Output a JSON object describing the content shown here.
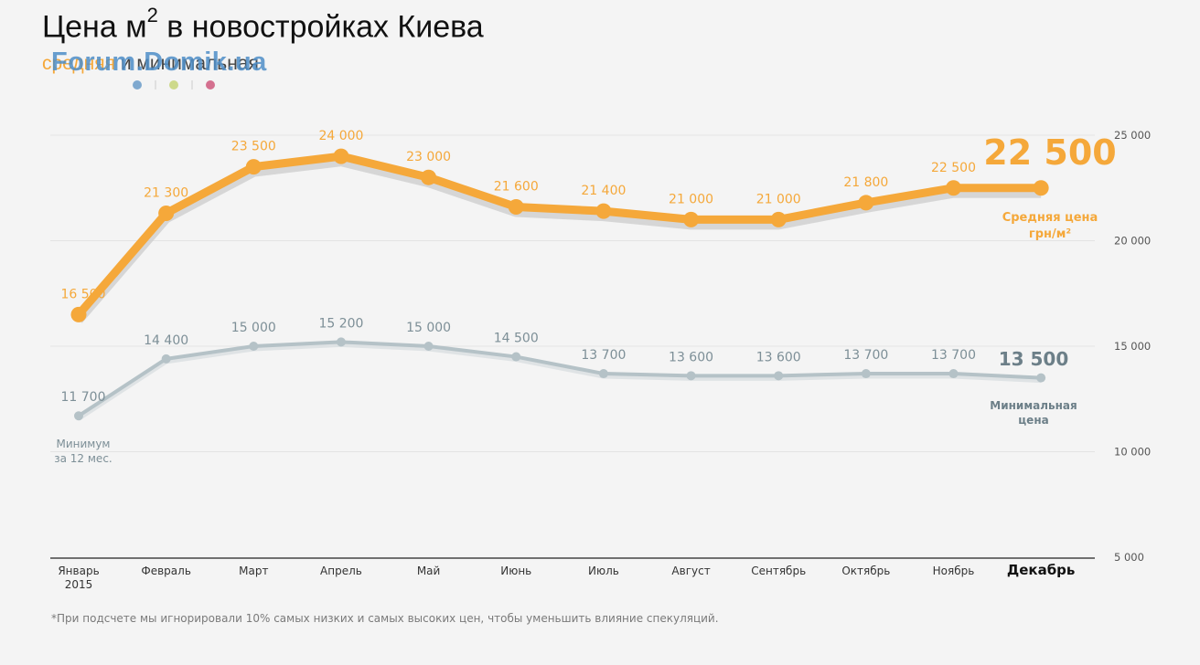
{
  "title": {
    "main": "Цена м",
    "sup": "2",
    "rest": " в новостройках Киева"
  },
  "subtitle": {
    "avg_word": "средняя",
    "rest": " и минимальная"
  },
  "watermark": {
    "text": "Forum.Domik.ua",
    "dot_colors": [
      "#7fa9cf",
      "#cdd98a",
      "#d4708f"
    ]
  },
  "footnote": "*При подсчете мы игнорировали 10% самых низких и самых высоких цен, чтобы уменьшить влияние спекуляций.",
  "colors": {
    "average": "#f5a83a",
    "minimum": "#b5c2c7",
    "shadow": "#cccccc",
    "grid": "#e3e3e3",
    "axis": "#222222"
  },
  "chart_data": {
    "type": "line",
    "categories": [
      "Январь",
      "Февраль",
      "Март",
      "Апрель",
      "Май",
      "Июнь",
      "Июль",
      "Август",
      "Сентябрь",
      "Октябрь",
      "Ноябрь",
      "Декабрь"
    ],
    "first_category_sub": "2015",
    "series": [
      {
        "key": "avg",
        "name": "Средняя цена грн/м²",
        "label_lines": [
          "Средняя цена",
          "грн/м²"
        ],
        "values": [
          16500,
          21300,
          23500,
          24000,
          23000,
          21600,
          21400,
          21000,
          21000,
          21800,
          22500,
          22500
        ],
        "value_labels": [
          "16 500",
          "21 300",
          "23 500",
          "24 000",
          "23 000",
          "21 600",
          "21 400",
          "21 000",
          "21 000",
          "21 800",
          "22 500"
        ],
        "last_label": "22 500"
      },
      {
        "key": "min",
        "name": "Минимальная цена",
        "label_lines": [
          "Минимальная",
          "цена"
        ],
        "values": [
          11700,
          14400,
          15000,
          15200,
          15000,
          14500,
          13700,
          13600,
          13600,
          13700,
          13700,
          13500
        ],
        "value_labels": [
          "11 700",
          "14 400",
          "15 000",
          "15 200",
          "15 000",
          "14 500",
          "13 700",
          "13 600",
          "13 600",
          "13 700",
          "13 700"
        ],
        "last_label": "13 500"
      }
    ],
    "annotation": [
      "Минимум",
      "за 12 мес."
    ],
    "y_ticks": [
      5000,
      10000,
      15000,
      20000,
      25000
    ],
    "y_tick_labels": [
      "5 000",
      "10 000",
      "15 000",
      "20 000",
      "25 000"
    ],
    "ylim": [
      5000,
      25000
    ],
    "y_axis_side": "right",
    "grid": true,
    "title": "Цена м2 в новостройках Киева",
    "xlabel": "",
    "ylabel": ""
  }
}
